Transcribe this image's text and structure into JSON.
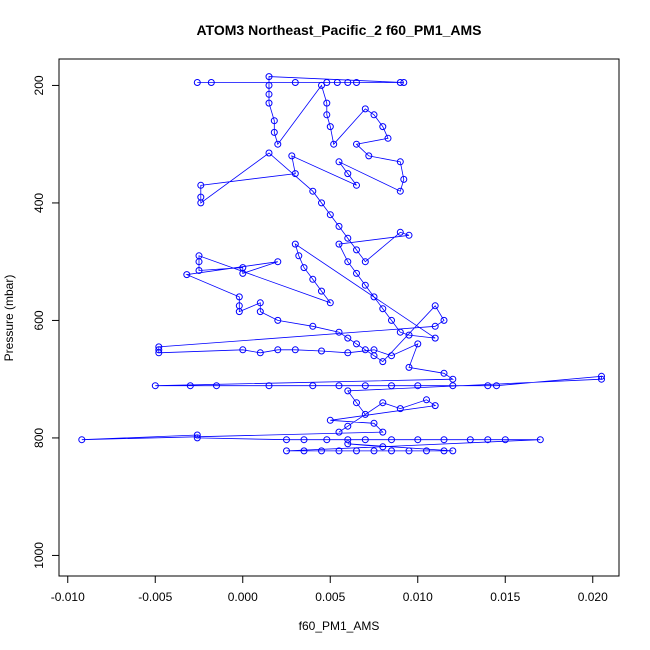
{
  "chart_data": {
    "type": "scatter",
    "title": "ATOM3 Northeast_Pacific_2 f60_PM1_AMS",
    "xlabel": "f60_PM1_AMS",
    "ylabel": "Pressure (mbar)",
    "xlim": [
      -0.0105,
      0.0215
    ],
    "ylim": [
      1035,
      155
    ],
    "y_reversed": true,
    "grid": false,
    "legend": "none",
    "color": "#0000ff",
    "marker": "open-circle",
    "connected": true,
    "x_ticks": [
      -0.01,
      -0.005,
      0.0,
      0.005,
      0.01,
      0.015,
      0.02
    ],
    "x_tick_labels": [
      "-0.010",
      "-0.005",
      "0.000",
      "0.005",
      "0.010",
      "0.015",
      "0.020"
    ],
    "y_ticks": [
      200,
      400,
      600,
      800,
      1000
    ],
    "y_tick_labels": [
      "200",
      "400",
      "600",
      "800",
      "1000"
    ],
    "series": [
      {
        "name": "",
        "points": [
          [
            -0.0026,
            195
          ],
          [
            -0.0018,
            195
          ],
          [
            0.003,
            195
          ],
          [
            0.0048,
            195
          ],
          [
            0.0054,
            195
          ],
          [
            0.006,
            195
          ],
          [
            0.0065,
            195
          ],
          [
            0.009,
            195
          ],
          [
            0.0092,
            195
          ],
          [
            0.0015,
            185
          ],
          [
            0.0015,
            200
          ],
          [
            0.0015,
            215
          ],
          [
            0.0015,
            230
          ],
          [
            0.0018,
            260
          ],
          [
            0.0018,
            280
          ],
          [
            0.002,
            300
          ],
          [
            0.0045,
            200
          ],
          [
            0.0048,
            230
          ],
          [
            0.0048,
            250
          ],
          [
            0.005,
            270
          ],
          [
            0.0052,
            300
          ],
          [
            0.007,
            240
          ],
          [
            0.0075,
            250
          ],
          [
            0.008,
            270
          ],
          [
            0.0083,
            290
          ],
          [
            0.0065,
            300
          ],
          [
            0.0072,
            320
          ],
          [
            0.009,
            330
          ],
          [
            0.0092,
            360
          ],
          [
            0.009,
            380
          ],
          [
            0.0055,
            330
          ],
          [
            0.006,
            350
          ],
          [
            0.0065,
            370
          ],
          [
            0.0028,
            320
          ],
          [
            0.003,
            350
          ],
          [
            -0.0024,
            370
          ],
          [
            -0.0024,
            390
          ],
          [
            -0.0024,
            400
          ],
          [
            0.0015,
            315
          ],
          [
            0.004,
            380
          ],
          [
            0.0045,
            400
          ],
          [
            0.005,
            420
          ],
          [
            0.0055,
            440
          ],
          [
            0.006,
            460
          ],
          [
            0.0065,
            480
          ],
          [
            0.007,
            500
          ],
          [
            0.009,
            450
          ],
          [
            0.0095,
            455
          ],
          [
            0.0055,
            470
          ],
          [
            0.006,
            500
          ],
          [
            0.0065,
            520
          ],
          [
            0.007,
            540
          ],
          [
            0.0075,
            560
          ],
          [
            0.008,
            580
          ],
          [
            0.0085,
            600
          ],
          [
            0.009,
            620
          ],
          [
            0.0095,
            625
          ],
          [
            0.011,
            630
          ],
          [
            0.003,
            470
          ],
          [
            0.0032,
            490
          ],
          [
            0.0035,
            510
          ],
          [
            0.004,
            530
          ],
          [
            0.0045,
            550
          ],
          [
            0.005,
            570
          ],
          [
            -0.0025,
            490
          ],
          [
            -0.0025,
            500
          ],
          [
            -0.0025,
            515
          ],
          [
            0.0,
            510
          ],
          [
            0.0,
            520
          ],
          [
            0.002,
            500
          ],
          [
            -0.0032,
            522
          ],
          [
            -0.0002,
            560
          ],
          [
            -0.0002,
            575
          ],
          [
            -0.0002,
            585
          ],
          [
            0.001,
            570
          ],
          [
            0.001,
            585
          ],
          [
            0.002,
            600
          ],
          [
            0.004,
            610
          ],
          [
            0.0055,
            620
          ],
          [
            0.006,
            630
          ],
          [
            0.0065,
            640
          ],
          [
            0.007,
            650
          ],
          [
            0.0075,
            660
          ],
          [
            0.008,
            670
          ],
          [
            0.011,
            575
          ],
          [
            0.0115,
            600
          ],
          [
            0.011,
            610
          ],
          [
            -0.0048,
            645
          ],
          [
            -0.0048,
            650
          ],
          [
            -0.0048,
            655
          ],
          [
            0.0,
            650
          ],
          [
            0.001,
            655
          ],
          [
            0.002,
            650
          ],
          [
            0.003,
            650
          ],
          [
            0.0045,
            652
          ],
          [
            0.006,
            655
          ],
          [
            0.0075,
            650
          ],
          [
            0.0085,
            660
          ],
          [
            0.01,
            640
          ],
          [
            0.0095,
            680
          ],
          [
            0.0115,
            690
          ],
          [
            0.012,
            700
          ],
          [
            -0.005,
            711
          ],
          [
            -0.003,
            711
          ],
          [
            -0.0015,
            711
          ],
          [
            0.0015,
            711
          ],
          [
            0.004,
            711
          ],
          [
            0.0055,
            711
          ],
          [
            0.007,
            711
          ],
          [
            0.0085,
            711
          ],
          [
            0.01,
            711
          ],
          [
            0.012,
            711
          ],
          [
            0.014,
            711
          ],
          [
            0.0145,
            711
          ],
          [
            0.0205,
            695
          ],
          [
            0.0205,
            700
          ],
          [
            0.006,
            720
          ],
          [
            0.0065,
            740
          ],
          [
            0.007,
            760
          ],
          [
            0.006,
            780
          ],
          [
            0.0055,
            790
          ],
          [
            0.008,
            740
          ],
          [
            0.009,
            750
          ],
          [
            0.0105,
            735
          ],
          [
            0.011,
            745
          ],
          [
            0.005,
            770
          ],
          [
            0.0075,
            775
          ],
          [
            0.008,
            790
          ],
          [
            -0.0092,
            803
          ],
          [
            -0.0026,
            795
          ],
          [
            -0.0026,
            800
          ],
          [
            0.0025,
            803
          ],
          [
            0.0035,
            803
          ],
          [
            0.0048,
            803
          ],
          [
            0.006,
            803
          ],
          [
            0.007,
            803
          ],
          [
            0.0085,
            803
          ],
          [
            0.01,
            803
          ],
          [
            0.0115,
            803
          ],
          [
            0.013,
            803
          ],
          [
            0.014,
            803
          ],
          [
            0.015,
            803
          ],
          [
            0.017,
            803
          ],
          [
            0.0025,
            822
          ],
          [
            0.0035,
            822
          ],
          [
            0.0045,
            822
          ],
          [
            0.0055,
            822
          ],
          [
            0.0065,
            822
          ],
          [
            0.0075,
            822
          ],
          [
            0.0085,
            822
          ],
          [
            0.0095,
            822
          ],
          [
            0.0105,
            822
          ],
          [
            0.0115,
            822
          ],
          [
            0.012,
            822
          ],
          [
            0.006,
            810
          ],
          [
            0.008,
            815
          ]
        ]
      }
    ]
  }
}
